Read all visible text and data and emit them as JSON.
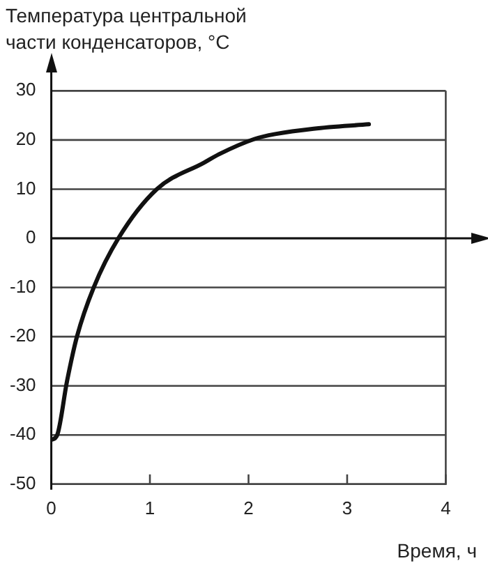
{
  "chart_data": {
    "type": "line",
    "ylabel": "Температура центральной части конденсаторов, °C",
    "xlabel": "Время, ч",
    "series": [
      {
        "color": "#111111",
        "x": [
          0,
          0.06,
          0.16,
          0.26,
          0.43,
          0.68,
          1.07,
          1.55,
          1.7,
          2.06,
          2.27,
          2.66,
          3.22
        ],
        "values": [
          -41,
          -40,
          -29,
          -20,
          -10,
          0,
          10,
          15.4,
          17.1,
          20.2,
          21.2,
          22.3,
          23.2
        ]
      }
    ],
    "xlim": [
      0,
      4.4
    ],
    "ylim": [
      -50,
      36
    ],
    "xticks": [
      0,
      1,
      2,
      3,
      4
    ],
    "yticks": [
      -50,
      -40,
      -30,
      -20,
      -10,
      0,
      10,
      20,
      30
    ],
    "grid": "y",
    "marker": "none",
    "line_style": "solid",
    "legend": false
  }
}
